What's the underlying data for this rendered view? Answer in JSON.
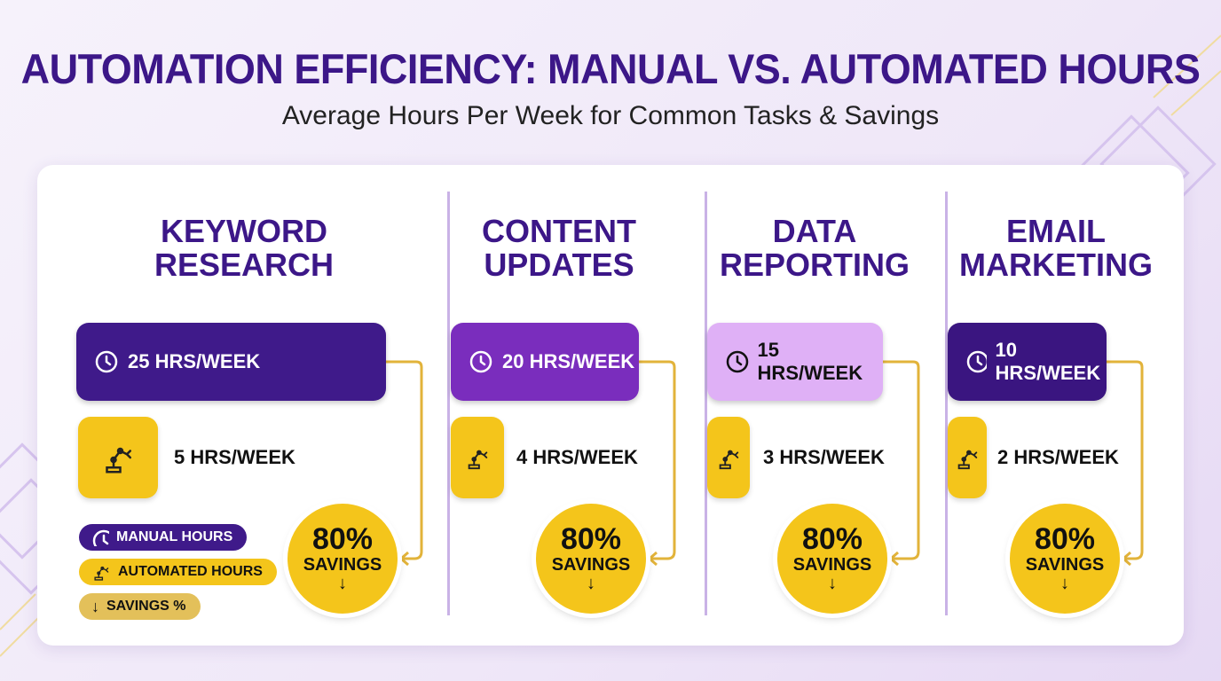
{
  "header": {
    "title": "AUTOMATION EFFICIENCY: MANUAL VS. AUTOMATED HOURS",
    "subtitle": "Average Hours Per Week for Common Tasks & Savings"
  },
  "tasks": [
    {
      "name": [
        "KEYWORD",
        "RESEARCH"
      ],
      "manual": "25 HRS/WEEK",
      "automated": "5 HRS/WEEK",
      "savings": "80%",
      "savings_label": "SAVINGS"
    },
    {
      "name": [
        "CONTENT",
        "UPDATES"
      ],
      "manual": "20 HRS/WEEK",
      "automated": "4 HRS/WEEK",
      "savings": "80%",
      "savings_label": "SAVINGS"
    },
    {
      "name": [
        "DATA",
        "REPORTING"
      ],
      "manual": "15 HRS/WEEK",
      "automated": "3 HRS/WEEK",
      "savings": "80%",
      "savings_label": "SAVINGS"
    },
    {
      "name": [
        "EMAIL",
        "MARKETING"
      ],
      "manual": "10 HRS/WEEK",
      "automated": "2 HRS/WEEK",
      "savings": "80%",
      "savings_label": "SAVINGS"
    }
  ],
  "legend": [
    "MANUAL HOURS",
    "AUTOMATED HOURS",
    "SAVINGS %"
  ]
}
